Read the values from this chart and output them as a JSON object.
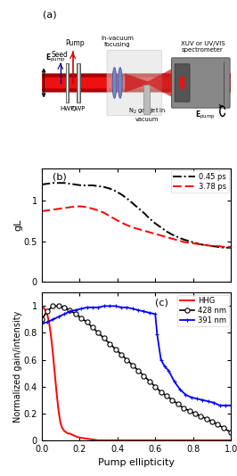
{
  "panel_b": {
    "black_x": [
      0.0,
      0.03,
      0.06,
      0.09,
      0.12,
      0.15,
      0.18,
      0.21,
      0.24,
      0.27,
      0.3,
      0.33,
      0.36,
      0.39,
      0.42,
      0.45,
      0.48,
      0.51,
      0.54,
      0.57,
      0.6,
      0.63,
      0.66,
      0.69,
      0.72,
      0.75,
      0.78,
      0.81,
      0.84,
      0.87,
      0.9,
      0.93,
      0.96,
      1.0
    ],
    "black_y": [
      1.2,
      1.21,
      1.22,
      1.22,
      1.22,
      1.21,
      1.2,
      1.19,
      1.19,
      1.19,
      1.18,
      1.17,
      1.15,
      1.12,
      1.08,
      1.03,
      0.97,
      0.91,
      0.85,
      0.78,
      0.72,
      0.67,
      0.62,
      0.58,
      0.55,
      0.52,
      0.5,
      0.48,
      0.46,
      0.45,
      0.44,
      0.43,
      0.42,
      0.42
    ],
    "red_x": [
      0.0,
      0.03,
      0.06,
      0.09,
      0.12,
      0.15,
      0.18,
      0.21,
      0.24,
      0.27,
      0.3,
      0.33,
      0.36,
      0.39,
      0.42,
      0.45,
      0.48,
      0.51,
      0.54,
      0.57,
      0.6,
      0.63,
      0.66,
      0.69,
      0.72,
      0.75,
      0.78,
      0.81,
      0.84,
      0.87,
      0.9,
      0.93,
      0.96,
      1.0
    ],
    "red_y": [
      0.87,
      0.88,
      0.89,
      0.9,
      0.91,
      0.92,
      0.93,
      0.93,
      0.92,
      0.9,
      0.88,
      0.85,
      0.81,
      0.77,
      0.73,
      0.7,
      0.67,
      0.65,
      0.63,
      0.61,
      0.59,
      0.57,
      0.55,
      0.53,
      0.51,
      0.49,
      0.48,
      0.47,
      0.46,
      0.45,
      0.44,
      0.44,
      0.43,
      0.43
    ],
    "ylabel": "gL",
    "ylim": [
      0,
      1.4
    ],
    "yticks": [
      0,
      0.5,
      1.0
    ],
    "label_black": "0.45 ps",
    "label_red": "3.78 ps"
  },
  "panel_c": {
    "hhg_x": [
      0.0,
      0.01,
      0.02,
      0.03,
      0.04,
      0.05,
      0.06,
      0.07,
      0.08,
      0.09,
      0.1,
      0.11,
      0.12,
      0.13,
      0.14,
      0.15,
      0.18,
      0.2,
      0.25,
      0.3,
      0.35,
      0.4,
      0.5,
      0.6,
      0.7,
      0.8,
      0.9,
      1.0
    ],
    "hhg_y": [
      1.0,
      0.99,
      0.97,
      0.94,
      0.88,
      0.78,
      0.65,
      0.5,
      0.35,
      0.22,
      0.13,
      0.09,
      0.07,
      0.06,
      0.05,
      0.05,
      0.03,
      0.02,
      0.01,
      0.0,
      0.0,
      0.0,
      0.0,
      0.0,
      0.0,
      0.0,
      0.0,
      0.0
    ],
    "nm428_x": [
      0.0,
      0.03,
      0.06,
      0.09,
      0.12,
      0.15,
      0.18,
      0.21,
      0.24,
      0.27,
      0.3,
      0.33,
      0.36,
      0.39,
      0.42,
      0.45,
      0.48,
      0.51,
      0.54,
      0.57,
      0.6,
      0.63,
      0.66,
      0.69,
      0.72,
      0.75,
      0.78,
      0.81,
      0.84,
      0.87,
      0.9,
      0.93,
      0.96,
      1.0
    ],
    "nm428_y": [
      0.9,
      0.96,
      1.0,
      1.0,
      0.99,
      0.97,
      0.94,
      0.91,
      0.88,
      0.84,
      0.8,
      0.76,
      0.72,
      0.68,
      0.64,
      0.6,
      0.56,
      0.52,
      0.48,
      0.44,
      0.4,
      0.36,
      0.33,
      0.3,
      0.27,
      0.24,
      0.22,
      0.2,
      0.18,
      0.16,
      0.14,
      0.12,
      0.09,
      0.06
    ],
    "nm391_x": [
      0.0,
      0.03,
      0.06,
      0.09,
      0.12,
      0.15,
      0.18,
      0.21,
      0.24,
      0.27,
      0.3,
      0.33,
      0.36,
      0.39,
      0.42,
      0.45,
      0.48,
      0.51,
      0.54,
      0.57,
      0.6,
      0.61,
      0.63,
      0.65,
      0.67,
      0.7,
      0.73,
      0.76,
      0.79,
      0.82,
      0.85,
      0.88,
      0.91,
      0.94,
      0.97,
      1.0
    ],
    "nm391_y": [
      0.87,
      0.88,
      0.9,
      0.92,
      0.94,
      0.96,
      0.97,
      0.98,
      0.99,
      0.99,
      0.99,
      1.0,
      1.0,
      1.0,
      0.99,
      0.99,
      0.98,
      0.97,
      0.96,
      0.95,
      0.94,
      0.79,
      0.6,
      0.55,
      0.52,
      0.44,
      0.38,
      0.34,
      0.32,
      0.31,
      0.3,
      0.29,
      0.28,
      0.26,
      0.26,
      0.26
    ],
    "ylabel": "Normalized gain/intensity",
    "ylim": [
      0,
      1.1
    ],
    "yticks": [
      0,
      0.2,
      0.4,
      0.6,
      0.8,
      1.0
    ],
    "xlabel": "Pump ellipticity",
    "label_hhg": "HHG",
    "label_428": "428 nm",
    "label_391": "391 nm"
  }
}
